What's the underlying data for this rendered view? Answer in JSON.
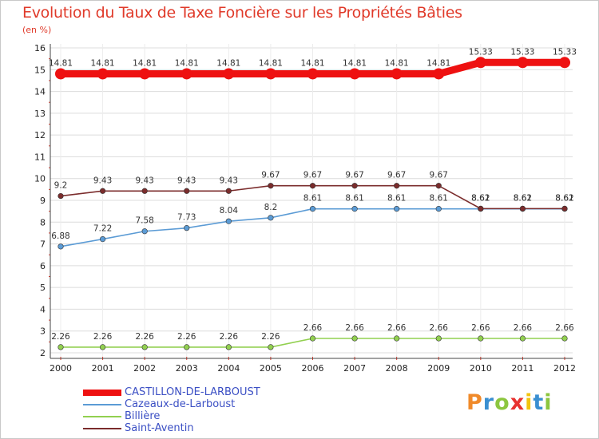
{
  "title": "Evolution du Taux de Taxe Foncière sur les Propriétés Bâties",
  "subtitle": "(en %)",
  "logo": {
    "text": "Proxiti",
    "letter_colors": [
      "#f08a2a",
      "#3a8fd1",
      "#8cc63f",
      "#e8312f",
      "#f2c40f",
      "#3a8fd1",
      "#8cc63f"
    ]
  },
  "chart_data": {
    "type": "line",
    "title": "Evolution du Taux de Taxe Foncière sur les Propriétés Bâties",
    "ylabel": "(en %)",
    "xlabel": "",
    "ylim": [
      2,
      16
    ],
    "yticks": [
      "2",
      "3",
      "4",
      "5",
      "6",
      "7",
      "8",
      "9",
      "10",
      "11",
      "12",
      "13",
      "14",
      "15",
      "16"
    ],
    "categories": [
      "2000",
      "2001",
      "2002",
      "2003",
      "2004",
      "2005",
      "2006",
      "2007",
      "2008",
      "2009",
      "2010",
      "2011",
      "2012"
    ],
    "series": [
      {
        "name": "CASTILLON-DE-LARBOUST",
        "color": "#ee1111",
        "bold": true,
        "values": [
          14.81,
          14.81,
          14.81,
          14.81,
          14.81,
          14.81,
          14.81,
          14.81,
          14.81,
          14.81,
          15.33,
          15.33,
          15.33
        ],
        "labels": [
          "14.81",
          "14.81",
          "14.81",
          "14.81",
          "14.81",
          "14.81",
          "14.81",
          "14.81",
          "14.81",
          "14.81",
          "15.33",
          "15.33",
          "15.33"
        ]
      },
      {
        "name": "Cazeaux-de-Larboust",
        "color": "#5b9bd5",
        "bold": false,
        "values": [
          6.88,
          7.22,
          7.58,
          7.73,
          8.04,
          8.2,
          8.61,
          8.61,
          8.61,
          8.61,
          8.61,
          8.61,
          8.61
        ],
        "labels": [
          "6.88",
          "7.22",
          "7.58",
          "7.73",
          "8.04",
          "8.2",
          "8.61",
          "8.61",
          "8.61",
          "8.61",
          "8.61",
          "8.61",
          "8.61"
        ]
      },
      {
        "name": "Billière",
        "color": "#92d050",
        "bold": false,
        "values": [
          2.26,
          2.26,
          2.26,
          2.26,
          2.26,
          2.26,
          2.66,
          2.66,
          2.66,
          2.66,
          2.66,
          2.66,
          2.66
        ],
        "labels": [
          "2.26",
          "2.26",
          "2.26",
          "2.26",
          "2.26",
          "2.26",
          "2.66",
          "2.66",
          "2.66",
          "2.66",
          "2.66",
          "2.66",
          "2.66"
        ]
      },
      {
        "name": "Saint-Aventin",
        "color": "#7b2c2c",
        "bold": false,
        "values": [
          9.2,
          9.43,
          9.43,
          9.43,
          9.43,
          9.67,
          9.67,
          9.67,
          9.67,
          9.67,
          8.62,
          8.62,
          8.62
        ],
        "labels": [
          "9.2",
          "9.43",
          "9.43",
          "9.43",
          "9.43",
          "9.67",
          "9.67",
          "9.67",
          "9.67",
          "9.67",
          "8.62",
          "8.62",
          "8.62"
        ]
      }
    ]
  }
}
